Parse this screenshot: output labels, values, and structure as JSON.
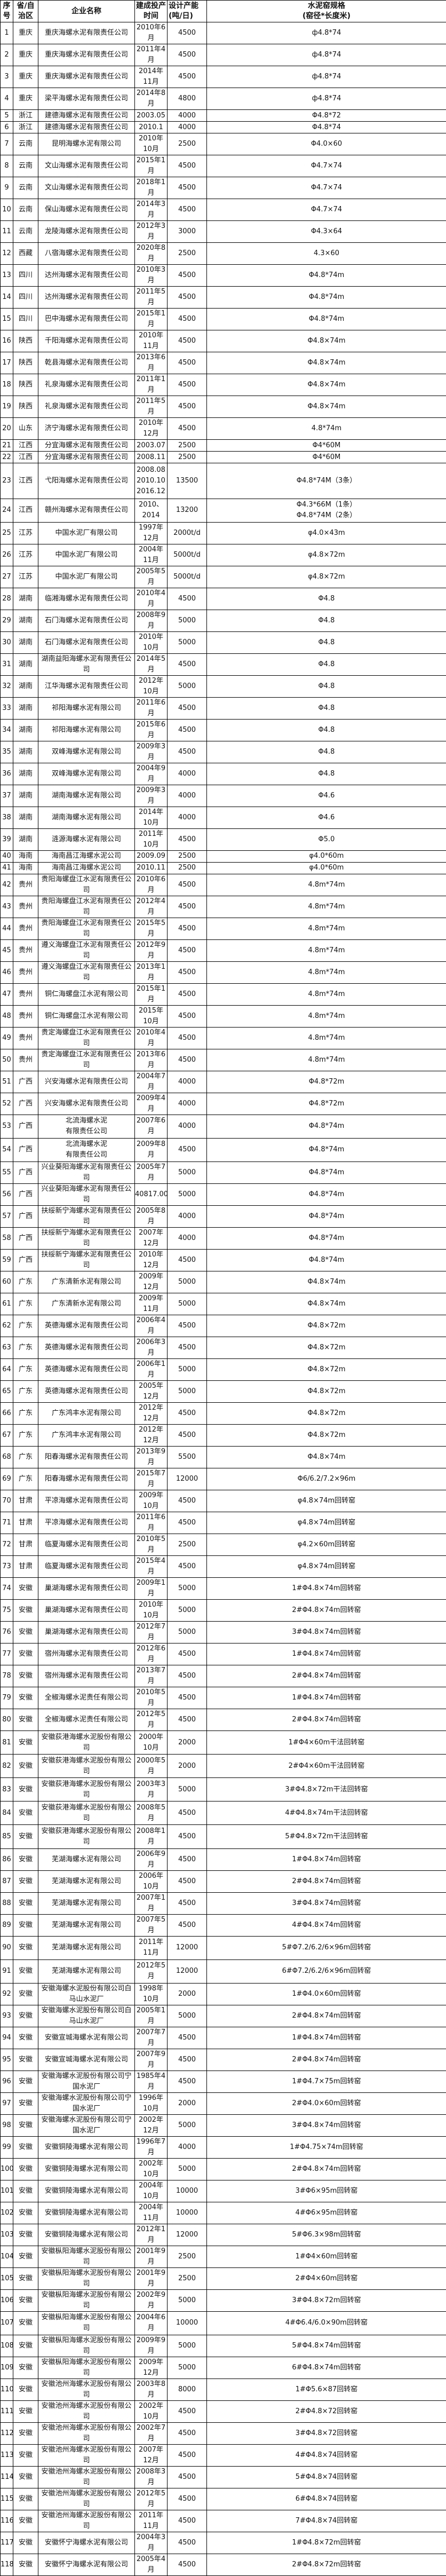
{
  "headers": [
    "序号",
    "省/自治区",
    "企业名称",
    "建成投产时间",
    "设计产能　　　(吨/日)",
    "水泥窑规格\n(窑径*长度米)"
  ],
  "rows": [
    [
      "1",
      "重庆",
      "重庆海螺水泥有限责任公司",
      "2010年6月",
      "4500",
      "ф4.8*74"
    ],
    [
      "2",
      "重庆",
      "重庆海螺水泥有限责任公司",
      "2011年4月",
      "4500",
      "ф4.8*74"
    ],
    [
      "3",
      "重庆",
      "重庆海螺水泥有限责任公司",
      "2014年11月",
      "4500",
      "ф4.8*74"
    ],
    [
      "4",
      "重庆",
      "梁平海螺水泥有限责任公司",
      "2014年8月",
      "4800",
      "ф4.8*74"
    ],
    [
      "5",
      "浙江",
      "建德海螺水泥有限责任公司",
      "2003.05",
      "4000",
      "Φ4.8*72"
    ],
    [
      "6",
      "浙江",
      "建德海螺水泥有限责任公司",
      "2010.1",
      "4000",
      "Φ4.8*74"
    ],
    [
      "7",
      "云南",
      "昆明海螺水泥有限公司",
      "2010年10月",
      "2500",
      "Φ4.0×60"
    ],
    [
      "8",
      "云南",
      "文山海螺水泥有限责任公司",
      "2015年1月",
      "4500",
      "Φ4.7×74"
    ],
    [
      "9",
      "云南",
      "文山海螺水泥有限责任公司",
      "2018年1月",
      "4500",
      "Φ4.7×74"
    ],
    [
      "10",
      "云南",
      "保山海螺水泥有限责任公司",
      "2014年3月",
      "4500",
      "Φ4.7×74"
    ],
    [
      "11",
      "云南",
      "龙陵海螺水泥有限责任公司",
      "2012年3月",
      "3000",
      "Φ4.3×64"
    ],
    [
      "12",
      "西藏",
      "八宿海螺水泥有限责任公司",
      "2020年8月",
      "2500",
      "4.3×60"
    ],
    [
      "13",
      "四川",
      "达州海螺水泥有限责任公司",
      "2010年3月",
      "4500",
      "Φ4.8*74m"
    ],
    [
      "14",
      "四川",
      "达州海螺水泥有限责任公司",
      "2011年5月",
      "4500",
      "Φ4.8*74m"
    ],
    [
      "15",
      "四川",
      "巴中海螺水泥有限责任公司",
      "2015年1月",
      "4500",
      "Φ4.8*74m"
    ],
    [
      "16",
      "陕西",
      "千阳海螺水泥有限责任公司",
      "2010年11月",
      "4500",
      "Φ4.8×74m"
    ],
    [
      "17",
      "陕西",
      "乾县海螺水泥有限责任公司",
      "2013年6月",
      "4500",
      "Φ4.8×74m"
    ],
    [
      "18",
      "陕西",
      "礼泉海螺水泥有限责任公司",
      "2011年1月",
      "4500",
      "Φ4.8×74m"
    ],
    [
      "19",
      "陕西",
      "礼泉海螺水泥有限责任公司",
      "2011年5月",
      "4500",
      "Φ4.8×74m"
    ],
    [
      "20",
      "山东",
      "济宁海螺水泥有限责任公司",
      "2010年12月",
      "4500",
      "4.8*74m"
    ],
    [
      "21",
      "江西",
      "分宜海螺水泥有限责任公司",
      "2003.07",
      "2500",
      "Φ4*60M"
    ],
    [
      "22",
      "江西",
      "分宜海螺水泥有限责任公司",
      "2008.11",
      "2500",
      "Φ4*60M"
    ],
    [
      "23",
      "江西",
      "弋阳海螺水泥有限责任公司",
      "2008.08\n2010.10\n2016.12",
      "13500",
      "Φ4.8*74M（3条）"
    ],
    [
      "24",
      "江西",
      "赣州海螺水泥有限责任公司",
      "2010、2014",
      "13200",
      "Φ4.3*66M（1条）\nΦ4.8*74M（2条）"
    ],
    [
      "25",
      "江苏",
      "中国水泥厂有限公司",
      "1997年12月",
      "2000t/d",
      "φ4.0×43m"
    ],
    [
      "26",
      "江苏",
      "中国水泥厂有限公司",
      "2004年11月",
      "5000t/d",
      "φ4.8×72m"
    ],
    [
      "27",
      "江苏",
      "中国水泥厂有限公司",
      "2005年5月",
      "5000t/d",
      "φ4.8×72m"
    ],
    [
      "28",
      "湖南",
      "临湘海螺水泥有限责任公司",
      "2010年4月",
      "4500",
      "Φ4.8"
    ],
    [
      "29",
      "湖南",
      "石门海螺水泥有限责任公司",
      "2008年9月",
      "5000",
      "Φ4.8"
    ],
    [
      "30",
      "湖南",
      "石门海螺水泥有限责任公司",
      "2010年10月",
      "5000",
      "Φ4.8"
    ],
    [
      "31",
      "湖南",
      "湖南益阳海螺水泥有限责任公司",
      "2014年5月",
      "4500",
      "Φ4.8"
    ],
    [
      "32",
      "湖南",
      "江华海螺水泥有限责任公司",
      "2012年10月",
      "5000",
      "Φ4.8"
    ],
    [
      "33",
      "湖南",
      "祁阳海螺水泥有限公司",
      "2011年6月",
      "4500",
      "Φ4.8"
    ],
    [
      "34",
      "湖南",
      "祁阳海螺水泥有限公司",
      "2015年6月",
      "4500",
      "Φ4.8"
    ],
    [
      "35",
      "湖南",
      "双峰海螺水泥有限公司",
      "2009年3月",
      "4500",
      "Φ4.8"
    ],
    [
      "36",
      "湖南",
      "双峰海螺水泥有限公司",
      "2004年9月",
      "4000",
      "Φ4.8"
    ],
    [
      "37",
      "湖南",
      "湖南海螺水泥有限公司",
      "2009年3月",
      "4000",
      "Φ4.6"
    ],
    [
      "38",
      "湖南",
      "湖南海螺水泥有限公司",
      "2014年10月",
      "4000",
      "Φ4.6"
    ],
    [
      "39",
      "湖南",
      "涟源海螺水泥有限公司",
      "2011年10月",
      "4500",
      "Φ5.0"
    ],
    [
      "40",
      "海南",
      "海南昌江海螺水泥公司",
      "2009.09",
      "2500",
      "φ4.0*60m"
    ],
    [
      "41",
      "海南",
      "海南昌江海螺水泥公司",
      "2010.11",
      "2500",
      "φ4.0*60m"
    ],
    [
      "42",
      "贵州",
      "贵阳海螺盘江水泥有限责任公司",
      "2010年6月",
      "4500",
      "4.8m*74m"
    ],
    [
      "43",
      "贵州",
      "贵阳海螺盘江水泥有限责任公司",
      "2012年4月",
      "4500",
      "4.8m*74m"
    ],
    [
      "44",
      "贵州",
      "贵阳海螺盘江水泥有限责任公司",
      "2015年5月",
      "4500",
      "4.8m*74m"
    ],
    [
      "45",
      "贵州",
      "遵义海螺盘江水泥有限责任公司",
      "2012年9月",
      "4500",
      "4.8m*74m"
    ],
    [
      "46",
      "贵州",
      "遵义海螺盘江水泥有限责任公司",
      "2013年1月",
      "4500",
      "4.8m*74m"
    ],
    [
      "47",
      "贵州",
      "铜仁海螺盘江水泥有限公司",
      "2015年1月",
      "4500",
      "4.8m*74m"
    ],
    [
      "48",
      "贵州",
      "铜仁海螺盘江水泥有限公司",
      "2015年10月",
      "4500",
      "4.8m*74m"
    ],
    [
      "49",
      "贵州",
      "贵定海螺盘江水泥有限责任公司",
      "2010年4月",
      "4500",
      "4.8m*74m"
    ],
    [
      "50",
      "贵州",
      "贵定海螺盘江水泥有限责任公司",
      "2013年6月",
      "4500",
      "4.8m*74m"
    ],
    [
      "51",
      "广西",
      "兴安海螺水泥有限责任公司",
      "2004年7月",
      "4000",
      "Φ4.8*72m"
    ],
    [
      "52",
      "广西",
      "兴安海螺水泥有限责任公司",
      "2009年4月",
      "4000",
      "Φ4.8*72m"
    ],
    [
      "53",
      "广西",
      "北流海螺水泥\n有限责任公司",
      "2007年6月",
      "4000",
      "Φ4.8*74m"
    ],
    [
      "54",
      "广西",
      "北流海螺水泥\n有限责任公司",
      "2009年8月",
      "4500",
      "Φ4.8*74m"
    ],
    [
      "55",
      "广西",
      "兴业葵阳海螺水泥有限责任公司",
      "2005年7月",
      "5000",
      "Φ4.8*74m"
    ],
    [
      "56",
      "广西",
      "兴业葵阳海螺水泥有限责任公司",
      "40817.00",
      "5000",
      "Φ4.8*74m"
    ],
    [
      "57",
      "广西",
      "扶绥新宁海螺水泥有限责任公司",
      "2005年8月",
      "4000",
      "Φ4.8*74m"
    ],
    [
      "58",
      "广西",
      "扶绥新宁海螺水泥有限责任公司",
      "2007年12月",
      "4000",
      "Φ4.8*74m"
    ],
    [
      "59",
      "广西",
      "扶绥新宁海螺水泥有限责任公司",
      "2010年12月",
      "4500",
      "Φ4.8*74m"
    ],
    [
      "60",
      "广东",
      "广东清新水泥有限公司",
      "2009年12月",
      "5000",
      "Φ4.8×74m"
    ],
    [
      "61",
      "广东",
      "广东清新水泥有限公司",
      "2009年11月",
      "5000",
      "Φ4.8×74m"
    ],
    [
      "62",
      "广东",
      "英德海螺水泥有限责任公司",
      "2006年4月",
      "4500",
      "Φ4.8×72m"
    ],
    [
      "63",
      "广东",
      "英德海螺水泥有限责任公司",
      "2006年3月",
      "4500",
      "Φ4.8×72m"
    ],
    [
      "64",
      "广东",
      "英德海螺水泥有限责任公司",
      "2006年1月",
      "5000",
      "Φ4.8×72m"
    ],
    [
      "65",
      "广东",
      "英德海螺水泥有限责任公司",
      "2005年12月",
      "5000",
      "Φ4.8×72m"
    ],
    [
      "66",
      "广东",
      "广东鸿丰水泥有限公司",
      "2012年12月",
      "4500",
      "Φ4.8×72m"
    ],
    [
      "67",
      "广东",
      "广东鸿丰水泥有限公司",
      "2012年12月",
      "4500",
      "Φ4.8×72m"
    ],
    [
      "68",
      "广东",
      "阳春海螺水泥有限责任公司",
      "2013年9月",
      "5500",
      "Φ4.8×74m"
    ],
    [
      "69",
      "广东",
      "阳春海螺水泥有限责任公司",
      "2015年7月",
      "12000",
      "Φ6/6.2/7.2×96m"
    ],
    [
      "70",
      "甘肃",
      "平凉海螺水泥有限责任公司",
      "2009年10月",
      "4500",
      "φ4.8×74m回转窑"
    ],
    [
      "71",
      "甘肃",
      "平凉海螺水泥有限责任公司",
      "2011年6月",
      "4500",
      "φ4.8×74m回转窑"
    ],
    [
      "72",
      "甘肃",
      "临夏海螺水泥有限责任公司",
      "2010年5月",
      "2500",
      "φ4.2×60m回转窑"
    ],
    [
      "73",
      "甘肃",
      "临夏海螺水泥有限责任公司",
      "2015年4月",
      "4500",
      "φ4.8×74m回转窑"
    ],
    [
      "74",
      "安徽",
      "巢湖海螺水泥有限责任公司",
      "2009年1月",
      "5000",
      "1#Φ4.8×74m回转窑"
    ],
    [
      "75",
      "安徽",
      "巢湖海螺水泥有限责任公司",
      "2010年10月",
      "5000",
      "2#Φ4.8×74m回转窑"
    ],
    [
      "76",
      "安徽",
      "巢湖海螺水泥有限责任公司",
      "2012年7月",
      "5000",
      "3#Φ4.8×74m回转窑"
    ],
    [
      "77",
      "安徽",
      "宿州海螺水泥有限责任公司",
      "2012年6月",
      "4500",
      "1#Φ4.8×74m回转窑"
    ],
    [
      "78",
      "安徽",
      "宿州海螺水泥有限责任公司",
      "2013年7月",
      "4500",
      "2#Φ4.8×74m回转窑"
    ],
    [
      "79",
      "安徽",
      "全椒海螺水泥责任有限公司",
      "2010年5月",
      "4500",
      "1#Φ4.8×74m回转窑"
    ],
    [
      "80",
      "安徽",
      "全椒海螺水泥责任有限公司",
      "2012年5月",
      "4500",
      "2#Φ4.8×74m回转窑"
    ],
    [
      "81",
      "安徽",
      "安徽荻港海螺水泥股份有限公司",
      "2000年10月",
      "2000",
      "1#Φ4×60m干法回转窑"
    ],
    [
      "82",
      "安徽",
      "安徽荻港海螺水泥股份有限公司",
      "2000年5月",
      "2000",
      "2#Φ4×60m干法回转窑"
    ],
    [
      "83",
      "安徽",
      "安徽荻港海螺水泥股份有限公司",
      "2003年3月",
      "5000",
      "3#Φ4.8×72m干法回转窑"
    ],
    [
      "84",
      "安徽",
      "安徽荻港海螺水泥股份有限公司",
      "2008年5月",
      "4500",
      "4#Φ4.8×74m干法回转窑"
    ],
    [
      "85",
      "安徽",
      "安徽荻港海螺水泥股份有限公司",
      "2008年1月",
      "4500",
      "5#Φ4.8×72m干法回转窑"
    ],
    [
      "86",
      "安徽",
      "芜湖海螺水泥有限公司",
      "2006年9月",
      "4500",
      "1#Φ4.8×74m回转窑"
    ],
    [
      "87",
      "安徽",
      "芜湖海螺水泥有限公司",
      "2006年10月",
      "4500",
      "2#Φ4.8×74m回转窑"
    ],
    [
      "88",
      "安徽",
      "芜湖海螺水泥有限公司",
      "2007年1月",
      "4500",
      "3#Φ4.8×74m回转窑"
    ],
    [
      "89",
      "安徽",
      "芜湖海螺水泥有限公司",
      "2007年5月",
      "4500",
      "4#Φ4.8×74m回转窑"
    ],
    [
      "90",
      "安徽",
      "芜湖海螺水泥有限公司",
      "2011年11月",
      "12000",
      "5#Φ7.2/6.2/6×96m回转窑"
    ],
    [
      "91",
      "安徽",
      "芜湖海螺水泥有限公司",
      "2012年5月",
      "12000",
      "6#Φ7.2/6.2/6×96m回转窑"
    ],
    [
      "92",
      "安徽",
      "安徽海螺水泥股份有限公司白马山水泥厂",
      "1998年10月",
      "2000",
      "1#Φ4.0×60m回转窑"
    ],
    [
      "93",
      "安徽",
      "安徽海螺水泥股份有限公司白马山水泥厂",
      "2005年1月",
      "5000",
      "2#Φ4.8×74m回转窑"
    ],
    [
      "94",
      "安徽",
      "安徽宣城海螺水泥有限公司",
      "2007年7月",
      "4500",
      "1#Φ4.8×74m回转窑"
    ],
    [
      "95",
      "安徽",
      "安徽宣城海螺水泥有限公司",
      "2007年9月",
      "4500",
      "2#Φ4.8×74m回转窑"
    ],
    [
      "96",
      "安徽",
      "安徽海螺水泥股份有限公司宁国水泥厂",
      "1985年4月",
      "4500",
      "1#Φ4.7×75m回转窑"
    ],
    [
      "97",
      "安徽",
      "安徽海螺水泥股份有限公司宁国水泥厂",
      "1996年10月",
      "2000",
      "2#Φ4.0×60m回转窑"
    ],
    [
      "98",
      "安徽",
      "安徽海螺水泥股份有限公司宁国水泥厂",
      "2002年12月",
      "5000",
      "3#Φ4.8×74m回转窑"
    ],
    [
      "99",
      "安徽",
      "安徽铜陵海螺水泥有限公司",
      "1996年7月",
      "4000",
      "1#Φ4.75×74m回转窑"
    ],
    [
      "100",
      "安徽",
      "安徽铜陵海螺水泥有限公司",
      "2002年10月",
      "5000",
      "2#Φ4.8×74m回转窑"
    ],
    [
      "101",
      "安徽",
      "安徽铜陵海螺水泥有限公司",
      "2004年10月",
      "10000",
      "3#Φ6×95m回转窑"
    ],
    [
      "102",
      "安徽",
      "安徽铜陵海螺水泥有限公司",
      "2004年11月",
      "10000",
      "4#Φ6×95m回转窑"
    ],
    [
      "103",
      "安徽",
      "安徽铜陵海螺水泥有限公司",
      "2012年1月",
      "12000",
      "5#Φ6.3×98m回转窑"
    ],
    [
      "104",
      "安徽",
      "安徽枞阳海螺水泥股份有限公司",
      "2001年9月",
      "2500",
      "1#Φ4×60m回转窑"
    ],
    [
      "105",
      "安徽",
      "安徽枞阳海螺水泥股份有限公司",
      "2001年9月",
      "2500",
      "2#Φ4×60m回转窑"
    ],
    [
      "106",
      "安徽",
      "安徽枞阳海螺水泥股份有限公司",
      "2002年9月",
      "5000",
      "3#Φ4.8×72m回转窑"
    ],
    [
      "107",
      "安徽",
      "安徽枞阳海螺水泥股份有限公司",
      "2004年6月",
      "10000",
      "4#Φ6.4/6.0×90m回转窑"
    ],
    [
      "108",
      "安徽",
      "安徽枞阳海螺水泥股份有限公司",
      "2009年9月",
      "5000",
      "5#Φ4.8×74m回转窑"
    ],
    [
      "109",
      "安徽",
      "安徽枞阳海螺水泥股份有限公司",
      "2009年12月",
      "5000",
      "6#Φ4.8×74m回转窑"
    ],
    [
      "110",
      "安徽",
      "安徽池州海螺水泥股份有限公司",
      "2003年8月",
      "8000",
      "1#Φ5.6×87回转窑"
    ],
    [
      "111",
      "安徽",
      "安徽池州海螺水泥股份有限公司",
      "2002年10月",
      "4500",
      "2#Φ4.8×72回转窑"
    ],
    [
      "112",
      "安徽",
      "安徽池州海螺水泥股份有限公司",
      "2002年7月",
      "4500",
      "3#Φ4.8×72回转窑"
    ],
    [
      "113",
      "安徽",
      "安徽池州海螺水泥股份有限公司",
      "2007年12月",
      "4500",
      "4#Φ4.8×74回转窑"
    ],
    [
      "114",
      "安徽",
      "安徽池州海螺水泥股份有限公司",
      "2008年3月",
      "4500",
      "5#Φ4.8×74回转窑"
    ],
    [
      "115",
      "安徽",
      "安徽池州海螺水泥股份有限公司",
      "2012年5月",
      "4500",
      "6#Φ4.8×74回转窑"
    ],
    [
      "116",
      "安徽",
      "安徽池州海螺水泥股份有限公司",
      "2011年11月",
      "4500",
      "7#Φ4.8×74回转窑"
    ],
    [
      "117",
      "安徽",
      "安徽怀宁海螺水泥有限公司",
      "2004年3月",
      "4500",
      "1#Φ4.8×72m回转窑"
    ],
    [
      "118",
      "安徽",
      "安徽怀宁海螺水泥有限公司",
      "2005年4月",
      "4500",
      "2#Φ4.8×72m回转窑"
    ]
  ]
}
